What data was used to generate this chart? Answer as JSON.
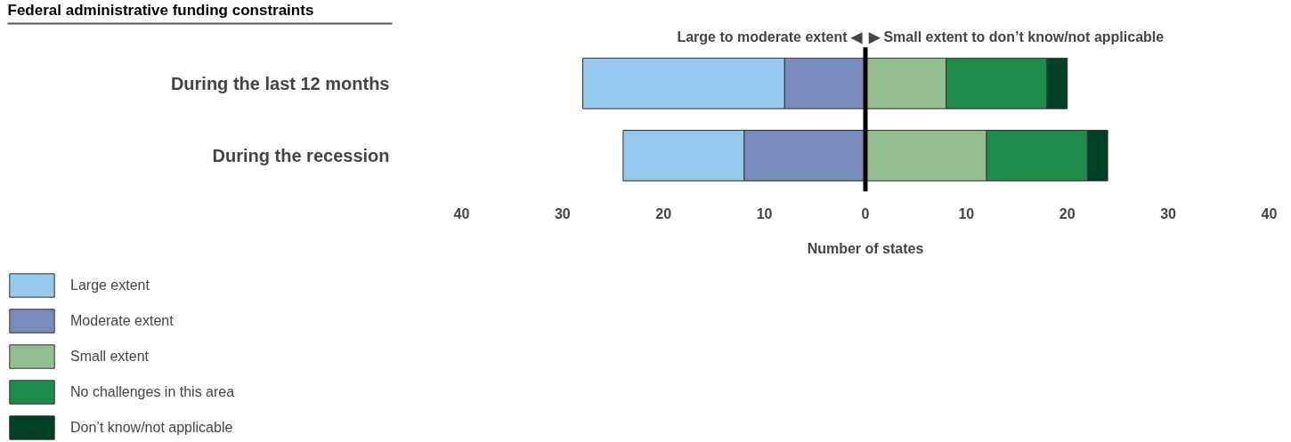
{
  "chart_data": {
    "type": "bar",
    "orientation": "horizontal",
    "title": "Federal administrative funding constraints",
    "xlabel": "Number of states",
    "categories": [
      "During the last 12 months",
      "During the recession"
    ],
    "series": [
      {
        "name": "Large extent",
        "color": "#95c8ed",
        "base": [
          -8,
          -12
        ],
        "values": [
          -20,
          -12
        ]
      },
      {
        "name": "Moderate extent",
        "color": "#788bbb",
        "base": [
          0,
          0
        ],
        "values": [
          -8,
          -12
        ]
      },
      {
        "name": "Small extent",
        "color": "#95bd92",
        "base": [
          0,
          0
        ],
        "values": [
          8,
          12
        ]
      },
      {
        "name": "No challenges in this area",
        "color": "#1e8b4c",
        "base": [
          8,
          12
        ],
        "values": [
          10,
          10
        ]
      },
      {
        "name": "Don’t know/not applicable",
        "color": "#004026",
        "base": [
          18,
          22
        ],
        "values": [
          2,
          2
        ]
      }
    ],
    "xlim": [
      -40,
      40
    ],
    "xticks": [
      {
        "value": -40,
        "label": "40"
      },
      {
        "value": -30,
        "label": "30"
      },
      {
        "value": -20,
        "label": "20"
      },
      {
        "value": -10,
        "label": "10"
      },
      0,
      10,
      20,
      30,
      40
    ],
    "ref_lines": [
      {
        "axis": "x",
        "value": 0,
        "color": "#000000"
      }
    ],
    "annotations": [
      "Large to moderate extent ◀",
      "▶ Small extent to don’t know/not applicable"
    ],
    "grid": false,
    "legend": "bottom left"
  }
}
